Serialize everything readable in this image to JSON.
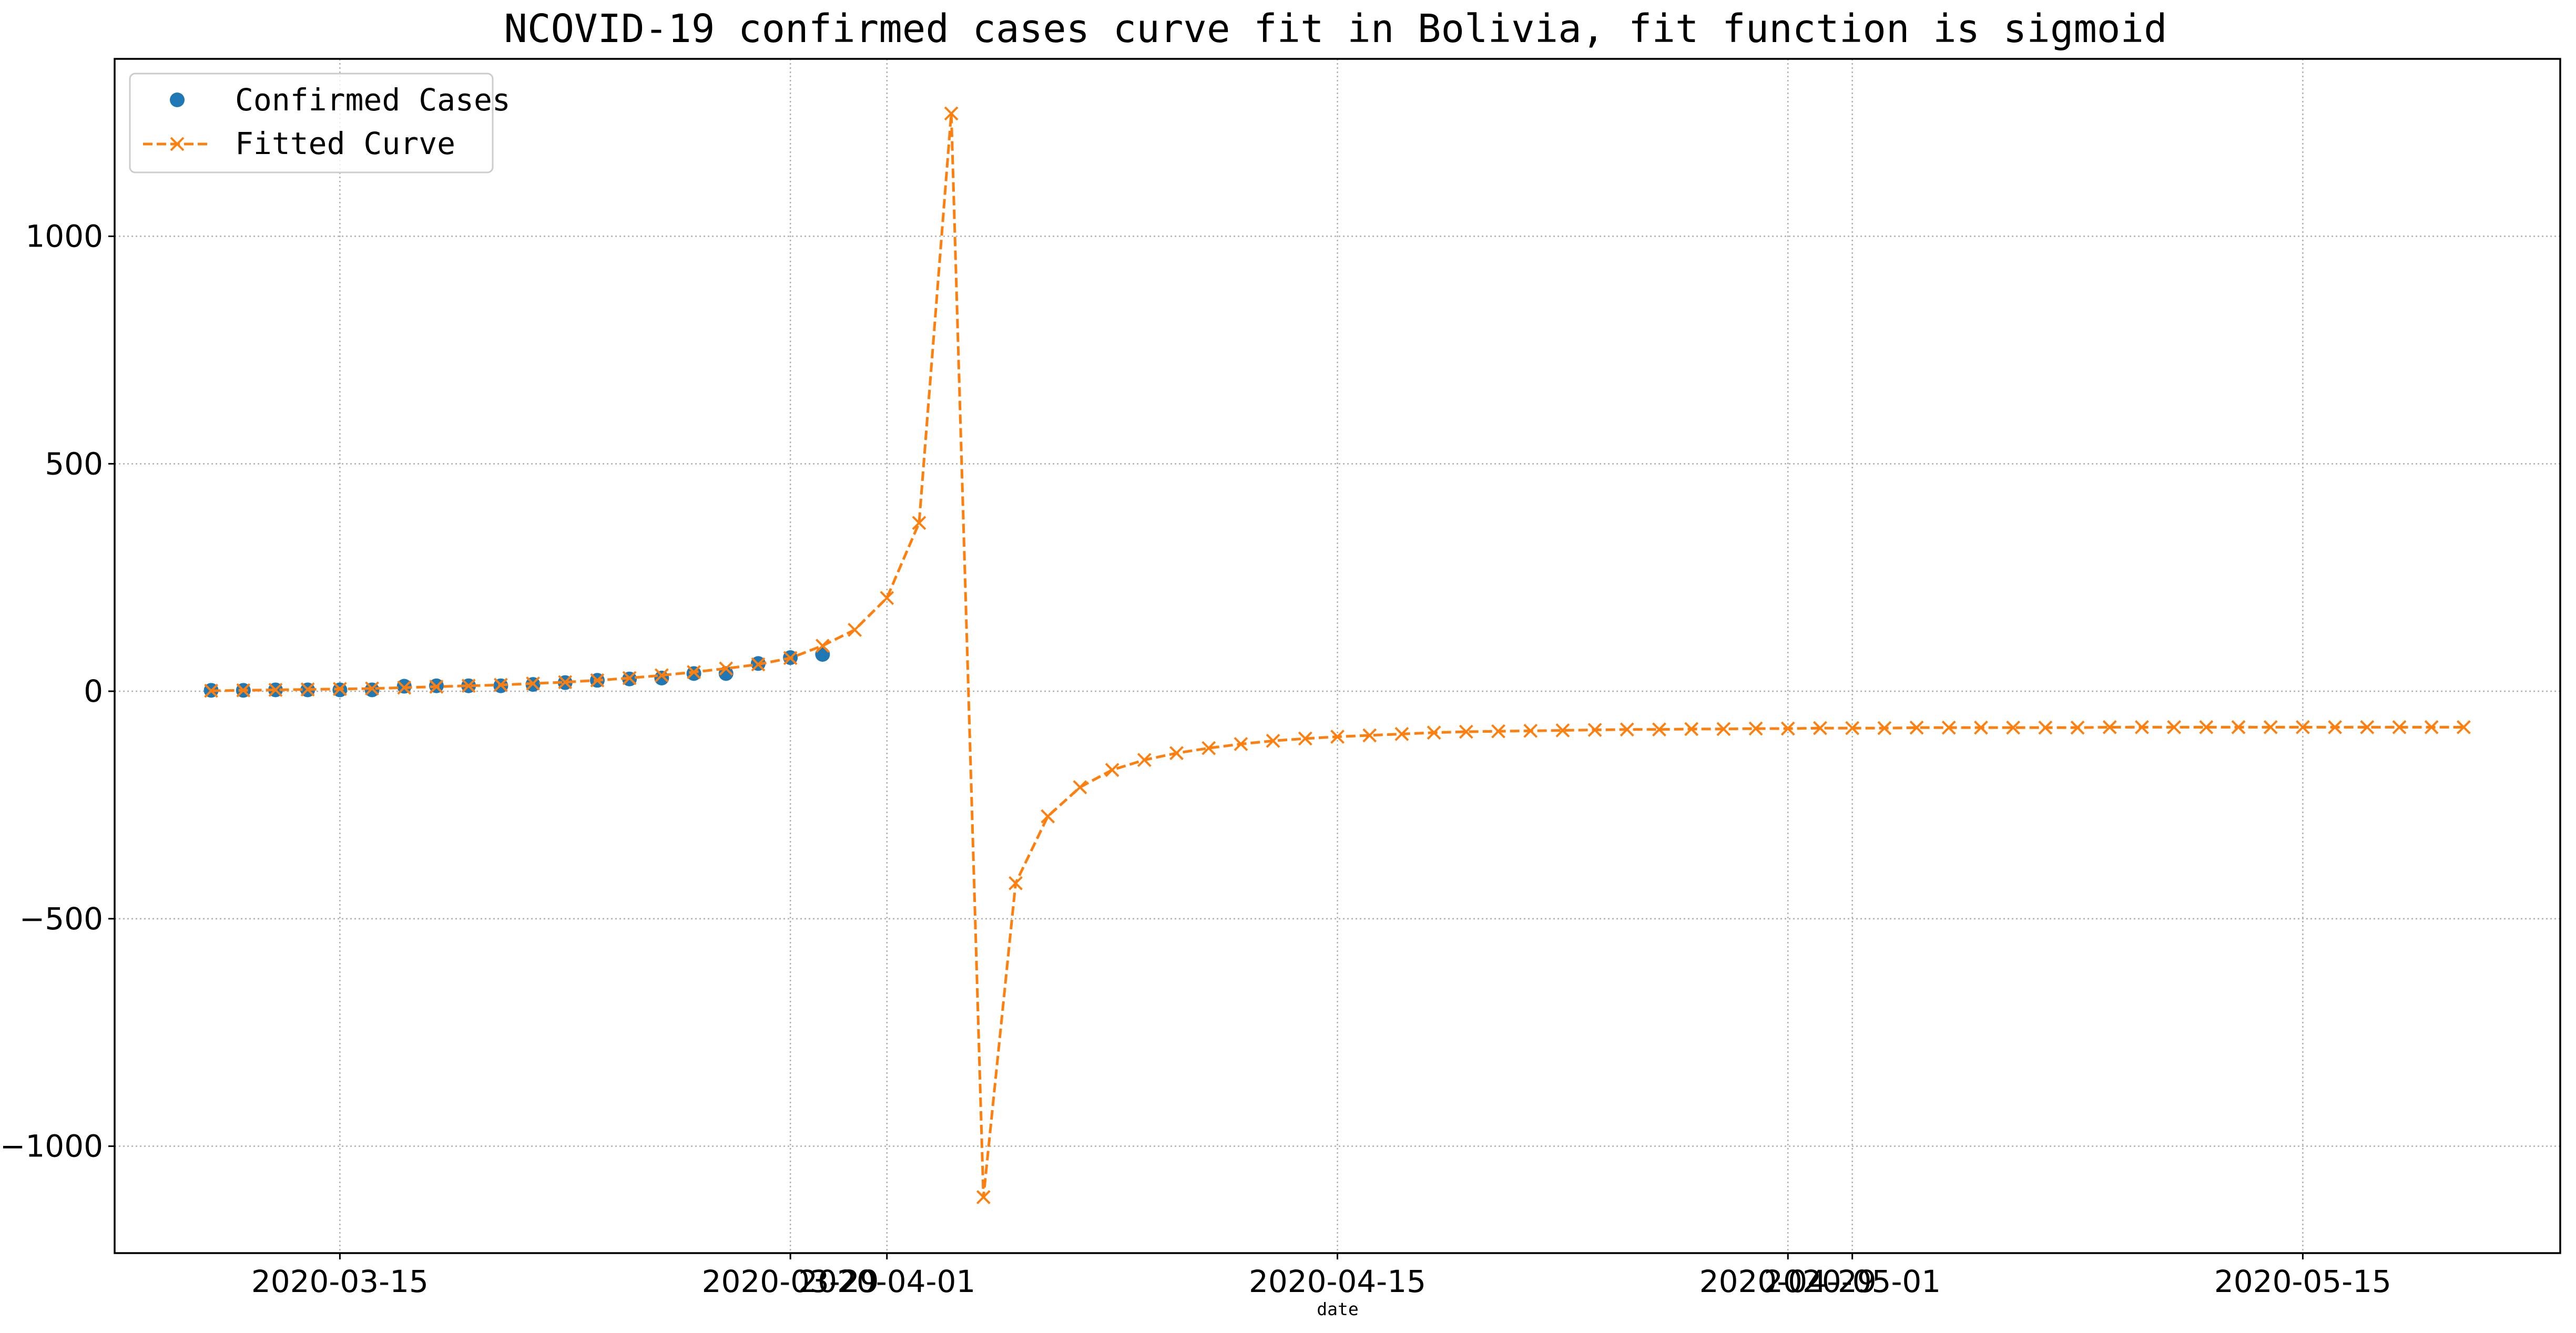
{
  "chart_data": {
    "type": "line",
    "title": "NCOVID-19 confirmed cases curve fit in Bolivia, fit function is sigmoid",
    "xlabel": "date",
    "ylabel": "",
    "xlim": [
      "2020-03-08",
      "2020-05-23"
    ],
    "ylim": [
      -1235,
      1390
    ],
    "grid": true,
    "legend_position": "top-left",
    "x_ticks": [
      "2020-03-15",
      "2020-03-29",
      "2020-04-01",
      "2020-04-15",
      "2020-04-29",
      "2020-05-01",
      "2020-05-15"
    ],
    "y_ticks": [
      -1000,
      -500,
      0,
      500,
      1000
    ],
    "colors": {
      "confirmed": "#1f77b4",
      "fitted": "#ff7f0e",
      "grid": "#b0b0b0"
    },
    "series": [
      {
        "name": "Confirmed Cases",
        "style": "markers",
        "x": [
          "2020-03-11",
          "2020-03-12",
          "2020-03-13",
          "2020-03-14",
          "2020-03-15",
          "2020-03-16",
          "2020-03-17",
          "2020-03-18",
          "2020-03-19",
          "2020-03-20",
          "2020-03-21",
          "2020-03-22",
          "2020-03-23",
          "2020-03-24",
          "2020-03-25",
          "2020-03-26",
          "2020-03-27",
          "2020-03-28",
          "2020-03-29",
          "2020-03-30"
        ],
        "y": [
          2,
          2,
          3,
          3,
          3,
          3,
          11,
          12,
          12,
          12,
          15,
          19,
          24,
          27,
          29,
          39,
          39,
          61,
          74,
          81
        ]
      },
      {
        "name": "Fitted Curve",
        "style": "dashed-x",
        "x": [
          "2020-03-11",
          "2020-03-12",
          "2020-03-13",
          "2020-03-14",
          "2020-03-15",
          "2020-03-16",
          "2020-03-17",
          "2020-03-18",
          "2020-03-19",
          "2020-03-20",
          "2020-03-21",
          "2020-03-22",
          "2020-03-23",
          "2020-03-24",
          "2020-03-25",
          "2020-03-26",
          "2020-03-27",
          "2020-03-28",
          "2020-03-29",
          "2020-03-30",
          "2020-03-31",
          "2020-04-01",
          "2020-04-02",
          "2020-04-03",
          "2020-04-04",
          "2020-04-05",
          "2020-04-06",
          "2020-04-07",
          "2020-04-08",
          "2020-04-09",
          "2020-04-10",
          "2020-04-11",
          "2020-04-12",
          "2020-04-13",
          "2020-04-14",
          "2020-04-15",
          "2020-04-16",
          "2020-04-17",
          "2020-04-18",
          "2020-04-19",
          "2020-04-20",
          "2020-04-21",
          "2020-04-22",
          "2020-04-23",
          "2020-04-24",
          "2020-04-25",
          "2020-04-26",
          "2020-04-27",
          "2020-04-28",
          "2020-04-29",
          "2020-04-30",
          "2020-05-01",
          "2020-05-02",
          "2020-05-03",
          "2020-05-04",
          "2020-05-05",
          "2020-05-06",
          "2020-05-07",
          "2020-05-08",
          "2020-05-09",
          "2020-05-10",
          "2020-05-11",
          "2020-05-12",
          "2020-05-13",
          "2020-05-14",
          "2020-05-15",
          "2020-05-16",
          "2020-05-17",
          "2020-05-18",
          "2020-05-19",
          "2020-05-20"
        ],
        "y": [
          1,
          2,
          3,
          4,
          5,
          6,
          8,
          10,
          12,
          14,
          17,
          20,
          24,
          29,
          35,
          42,
          50,
          59,
          73,
          100,
          135,
          205,
          370,
          1270,
          -1112,
          -422,
          -275,
          -211,
          -173,
          -151,
          -136,
          -125,
          -116,
          -109,
          -104,
          -100,
          -97,
          -94,
          -91,
          -89,
          -88,
          -87,
          -86,
          -85,
          -84,
          -84,
          -83,
          -83,
          -82,
          -82,
          -81,
          -81,
          -81,
          -80,
          -80,
          -80,
          -80,
          -80,
          -80,
          -79,
          -79,
          -79,
          -79,
          -79,
          -79,
          -79,
          -79,
          -79,
          -79,
          -79,
          -79
        ]
      }
    ]
  }
}
